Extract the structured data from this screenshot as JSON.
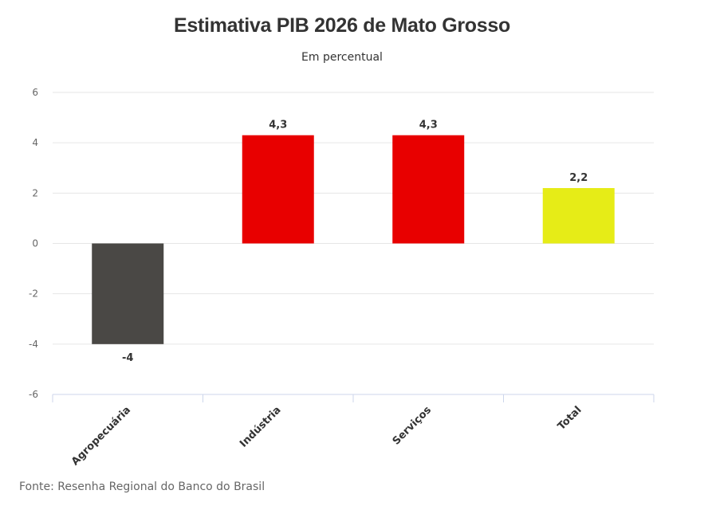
{
  "chart_data": {
    "type": "bar",
    "title": "Estimativa PIB 2026 de Mato Grosso",
    "subtitle": "Em percentual",
    "source": "Fonte: Resenha Regional do Banco do Brasil",
    "categories": [
      "Agropecuária",
      "Indústria",
      "Serviços",
      "Total"
    ],
    "values": [
      -4,
      4.3,
      4.3,
      2.2
    ],
    "value_labels": [
      "-4",
      "4,3",
      "4,3",
      "2,2"
    ],
    "colors": [
      "#4a4845",
      "#e80000",
      "#e80000",
      "#e6ec17"
    ],
    "yticks": [
      6,
      4,
      2,
      0,
      -2,
      -4,
      -6
    ],
    "ylim": [
      -6,
      6
    ],
    "grid": true,
    "legend": "none"
  }
}
